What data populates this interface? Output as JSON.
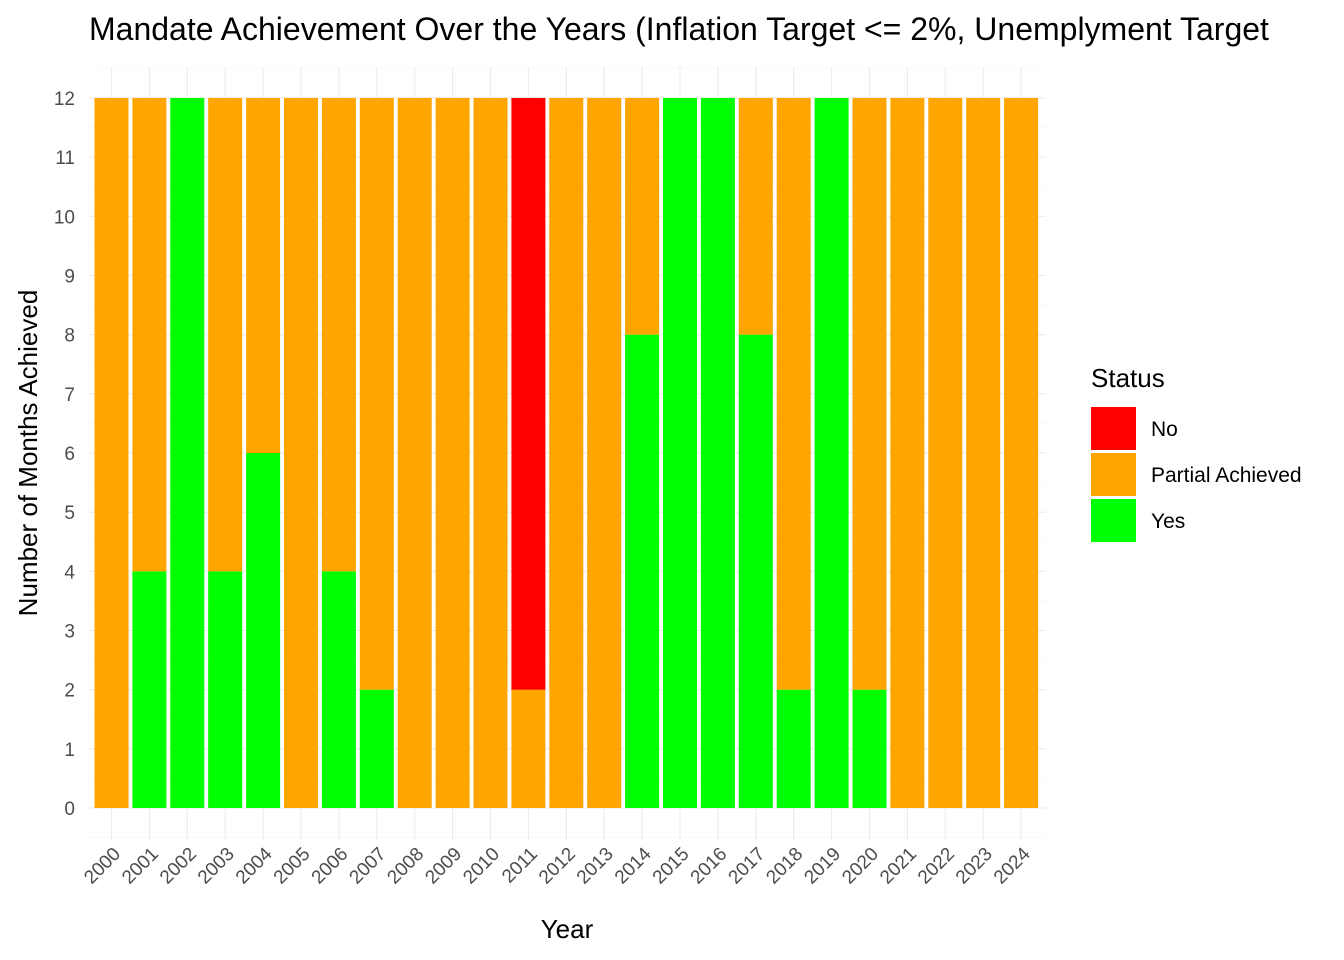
{
  "chart_data": {
    "type": "bar",
    "stacked": true,
    "title": "Mandate Achievement Over the Years (Inflation Target <= 2%, Unemplyment Target",
    "xlabel": "Year",
    "ylabel": "Number of Months Achieved",
    "ylim": [
      0,
      12
    ],
    "yticks": [
      0,
      1,
      2,
      3,
      4,
      5,
      6,
      7,
      8,
      9,
      10,
      11,
      12
    ],
    "grid": true,
    "legend": {
      "title": "Status",
      "position": "right"
    },
    "categories": [
      "2000",
      "2001",
      "2002",
      "2003",
      "2004",
      "2005",
      "2006",
      "2007",
      "2008",
      "2009",
      "2010",
      "2011",
      "2012",
      "2013",
      "2014",
      "2015",
      "2016",
      "2017",
      "2018",
      "2019",
      "2020",
      "2021",
      "2022",
      "2023",
      "2024"
    ],
    "series": [
      {
        "name": "No",
        "color": "#ff0000",
        "values": [
          0,
          0,
          0,
          0,
          0,
          0,
          0,
          0,
          0,
          0,
          0,
          10,
          0,
          0,
          0,
          0,
          0,
          0,
          0,
          0,
          0,
          0,
          0,
          0,
          0
        ]
      },
      {
        "name": "Partial Achieved",
        "color": "#ffa500",
        "values": [
          12,
          8,
          0,
          8,
          6,
          12,
          8,
          10,
          12,
          12,
          12,
          2,
          12,
          12,
          4,
          0,
          0,
          4,
          10,
          0,
          10,
          12,
          12,
          12,
          12
        ]
      },
      {
        "name": "Yes",
        "color": "#00ff00",
        "values": [
          0,
          4,
          12,
          4,
          6,
          0,
          4,
          2,
          0,
          0,
          0,
          0,
          0,
          0,
          8,
          12,
          12,
          8,
          2,
          12,
          2,
          0,
          0,
          0,
          0
        ]
      }
    ]
  }
}
